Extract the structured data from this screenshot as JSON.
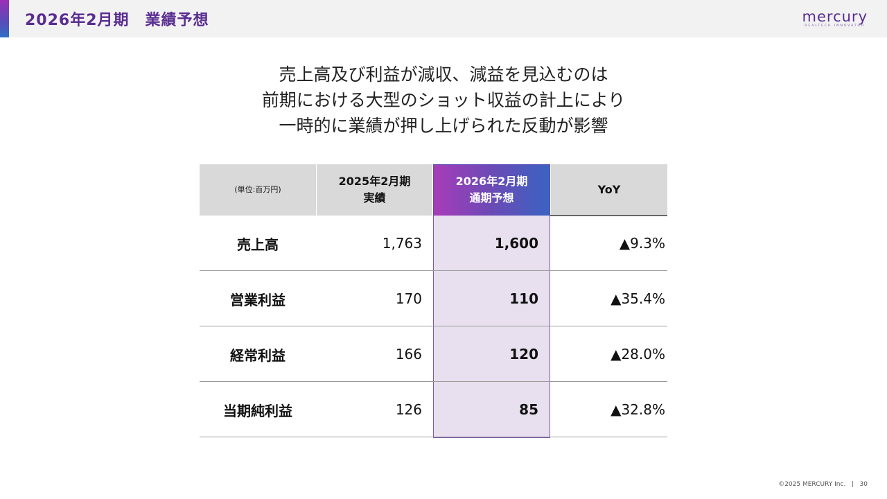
{
  "header": {
    "title": "2026年2月期　業績予想",
    "logo_word": "mercury",
    "logo_tagline": "REALTECH INNOVATOR"
  },
  "headline": {
    "lines": [
      "売上高及び利益が減収、減益を見込むのは",
      "前期における大型のショット収益の計上により",
      "一時的に業績が押し上げられた反動が影響"
    ]
  },
  "table": {
    "unit_label": "(単位:百万円)",
    "col_prev_l1": "2025年2月期",
    "col_prev_l2": "実績",
    "col_fcst_l1": "2026年2月期",
    "col_fcst_l2": "通期予想",
    "col_yoy": "YoY",
    "rows": [
      {
        "label": "売上高",
        "prev": "1,763",
        "forecast": "1,600",
        "yoy": "▲9.3%"
      },
      {
        "label": "営業利益",
        "prev": "170",
        "forecast": "110",
        "yoy": "▲35.4%"
      },
      {
        "label": "経常利益",
        "prev": "166",
        "forecast": "120",
        "yoy": "▲28.0%"
      },
      {
        "label": "当期純利益",
        "prev": "126",
        "forecast": "85",
        "yoy": "▲32.8%"
      }
    ]
  },
  "footer": {
    "copyright": "©2025 MERCURY Inc.",
    "separator": "|",
    "page_number": "30"
  },
  "colors": {
    "brand_purple": "#5a2d91",
    "highlight_fill": "#e8e0ef",
    "header_gray": "#d9d9d9"
  }
}
